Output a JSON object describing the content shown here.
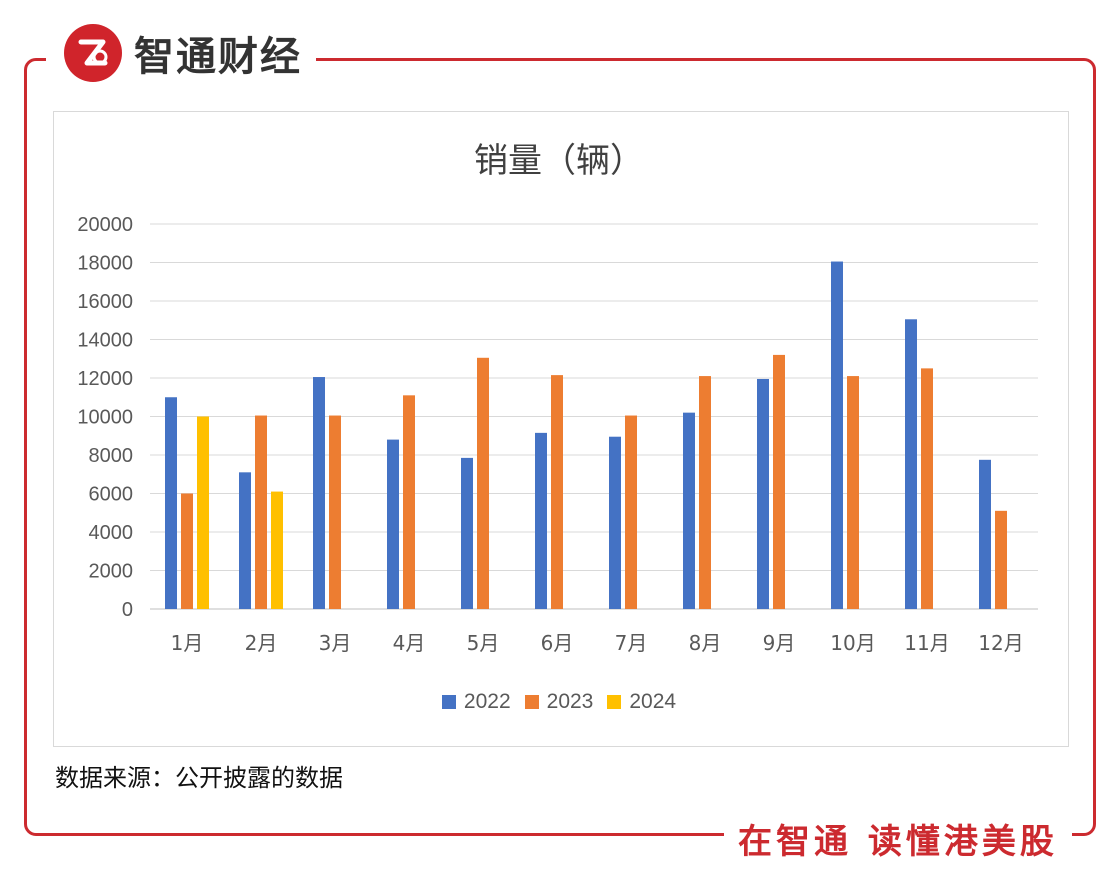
{
  "brand": {
    "name": "智通财经",
    "slogan": "在智通 读懂港美股"
  },
  "source_note": "数据来源：公开披露的数据",
  "colors": {
    "frame": "#cc2a2f",
    "2022": "#4472c4",
    "2023": "#ed7d31",
    "2024": "#ffc000"
  },
  "chart_data": {
    "type": "bar",
    "title": "销量（辆）",
    "categories": [
      "1月",
      "2月",
      "3月",
      "4月",
      "5月",
      "6月",
      "7月",
      "8月",
      "9月",
      "10月",
      "11月",
      "12月"
    ],
    "series": [
      {
        "name": "2022",
        "color": "#4472c4",
        "values": [
          11000,
          7100,
          12050,
          8800,
          7850,
          9150,
          8950,
          10200,
          11950,
          18050,
          15050,
          7750
        ]
      },
      {
        "name": "2023",
        "color": "#ed7d31",
        "values": [
          6000,
          10050,
          10050,
          11100,
          13050,
          12150,
          10050,
          12100,
          13200,
          12100,
          12500,
          5100
        ]
      },
      {
        "name": "2024",
        "color": "#ffc000",
        "values": [
          10000,
          6100,
          null,
          null,
          null,
          null,
          null,
          null,
          null,
          null,
          null,
          null
        ]
      }
    ],
    "yticks": [
      "0",
      "2000",
      "4000",
      "6000",
      "8000",
      "10000",
      "12000",
      "14000",
      "16000",
      "18000",
      "20000"
    ],
    "ylim": [
      0,
      20000
    ],
    "grid": true,
    "legend_position": "bottom"
  }
}
